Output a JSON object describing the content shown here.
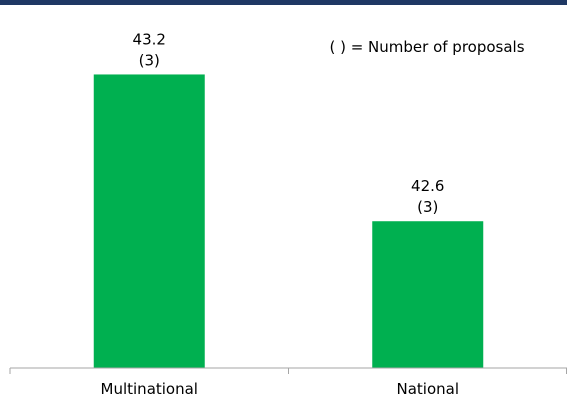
{
  "chart_data": {
    "type": "bar",
    "categories": [
      "Multinational",
      "National"
    ],
    "values": [
      43.2,
      42.6
    ],
    "counts": [
      "(3)",
      "(3)"
    ],
    "value_labels": [
      "43.2",
      "42.6"
    ],
    "annotation": "( ) = Number of proposals",
    "bar_color": "#00b050",
    "ylim": [
      42.0,
      43.3
    ],
    "grid": false,
    "title": "",
    "xlabel": "",
    "ylabel": ""
  },
  "theme": {
    "top_band_color": "#1f3864",
    "axis_color": "#a6a6a6"
  }
}
